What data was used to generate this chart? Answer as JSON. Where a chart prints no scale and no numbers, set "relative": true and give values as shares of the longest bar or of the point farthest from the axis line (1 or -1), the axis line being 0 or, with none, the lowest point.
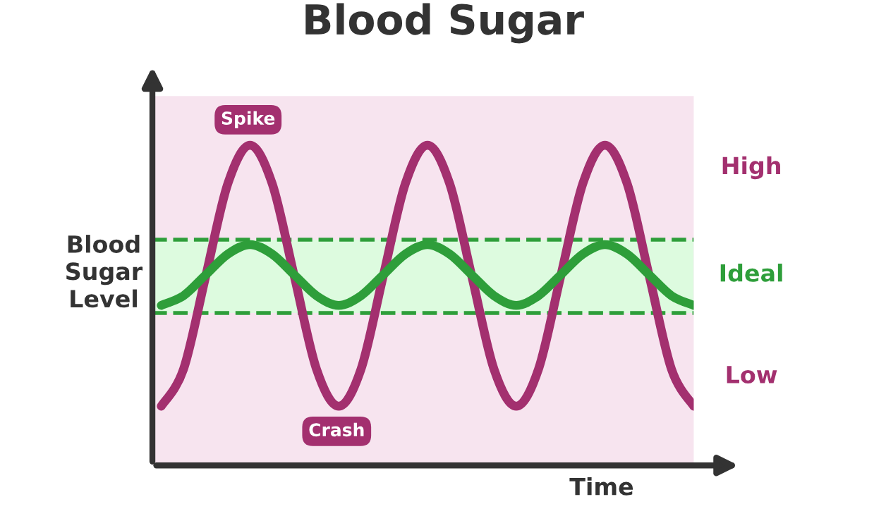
{
  "chart_data": {
    "type": "line",
    "title": "Blood Sugar",
    "xlabel": "Time",
    "ylabel": "Blood\nSugar\nLevel",
    "relative": true,
    "categories": [
      null,
      null,
      null,
      null,
      null,
      null,
      null,
      null,
      null,
      null,
      null,
      null,
      null,
      null,
      null,
      null,
      null,
      null,
      null,
      null,
      null,
      null,
      null,
      null,
      null
    ],
    "series": [
      {
        "color": "#a3306f",
        "values": [
          0.185,
          0.3,
          0.59,
          0.88,
          1.0,
          0.88,
          0.59,
          0.3,
          0.185,
          0.3,
          0.59,
          0.88,
          1.0,
          0.88,
          0.59,
          0.3,
          0.185,
          0.3,
          0.59,
          0.88,
          1.0,
          0.88,
          0.59,
          0.3,
          0.185
        ]
      },
      {
        "color": "#2e9e3a",
        "values": [
          0.5,
          0.53,
          0.595,
          0.66,
          0.69,
          0.66,
          0.595,
          0.53,
          0.5,
          0.53,
          0.595,
          0.66,
          0.69,
          0.66,
          0.595,
          0.53,
          0.5,
          0.53,
          0.595,
          0.66,
          0.69,
          0.66,
          0.595,
          0.53,
          0.5
        ]
      }
    ],
    "bands": [
      {
        "axis": "y",
        "from": 0.476,
        "to": 0.705,
        "color": "#ddfbdf"
      }
    ],
    "ref_lines": [
      {
        "axis": "y",
        "value": 0.476,
        "color": "#2e9e3a",
        "line_style": "dashed"
      },
      {
        "axis": "y",
        "value": 0.705,
        "color": "#2e9e3a",
        "line_style": "dashed"
      }
    ],
    "annotations": [
      "High",
      "Ideal",
      "Low",
      "Spike",
      "Crash"
    ],
    "legend": false,
    "line_style": "solid",
    "marker": "none"
  }
}
